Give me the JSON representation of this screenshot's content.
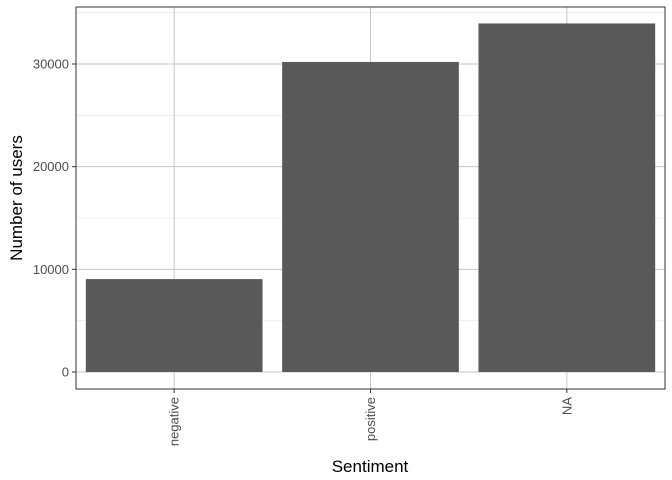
{
  "chart_data": {
    "type": "bar",
    "categories": [
      "negative",
      "positive",
      "NA"
    ],
    "values": [
      9050,
      30200,
      33950
    ],
    "xlabel": "Sentiment",
    "ylabel": "Number of users",
    "ylim": [
      0,
      35000
    ],
    "yticks": [
      0,
      10000,
      20000,
      30000
    ],
    "ytick_labels": [
      "0",
      "10000",
      "20000",
      "30000"
    ],
    "grid": true,
    "legend": "none",
    "colors": {
      "bar": "#595959",
      "grid_major": "#c4c4c4",
      "grid_minor": "#ebebeb",
      "panel_border": "#333333"
    }
  }
}
